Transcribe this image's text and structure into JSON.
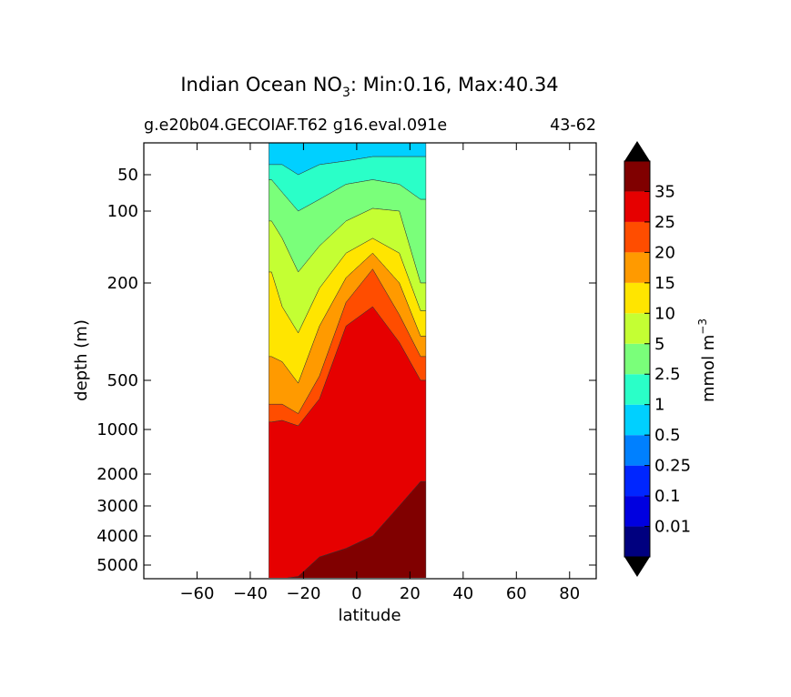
{
  "chart_data": {
    "type": "heatmap",
    "title_prefix": "Indian Ocean NO",
    "title_subscript": "3",
    "title_suffix": ": Min:0.16, Max:40.34",
    "subtitle_left": "g.e20b04.GECOIAF.T62 g16.eval.091e",
    "subtitle_right": "43-62",
    "xlabel": "latitude",
    "ylabel": "depth (m)",
    "xlim": [
      -80,
      90
    ],
    "x_ticks": [
      -60,
      -40,
      -20,
      0,
      20,
      40,
      60,
      80
    ],
    "x_tick_labels": [
      "−60",
      "−40",
      "−20",
      "0",
      "20",
      "40",
      "60",
      "80"
    ],
    "y_ticks": [
      50,
      100,
      200,
      500,
      1000,
      2000,
      3000,
      4000,
      5000
    ],
    "y_tick_labels": [
      "50",
      "100",
      "200",
      "500",
      "1000",
      "2000",
      "3000",
      "4000",
      "5000"
    ],
    "colorbar": {
      "label_prefix": "mmol m",
      "label_superscript": "−3",
      "levels": [
        0,
        0.01,
        0.1,
        0.25,
        0.5,
        1,
        2.5,
        5,
        10,
        15,
        20,
        25,
        35
      ],
      "level_labels": [
        "0.01",
        "0.1",
        "0.25",
        "0.5",
        "1",
        "2.5",
        "5",
        "10",
        "15",
        "20",
        "25",
        "35"
      ],
      "colors": [
        "#00007f",
        "#0000e0",
        "#0026ff",
        "#0080ff",
        "#00d0ff",
        "#2affc8",
        "#7aff7a",
        "#c4ff33",
        "#ffe500",
        "#ff9a00",
        "#ff4d00",
        "#e60000",
        "#800000"
      ],
      "extend_color": "#000000"
    },
    "section": {
      "lat_min": -33,
      "lat_max": 26,
      "profile": [
        {
          "lat": -32,
          "depths": [
            10,
            30,
            55,
            110,
            180,
            400,
            700,
            900,
            5600
          ]
        },
        {
          "lat": -28,
          "depths": [
            10,
            30,
            70,
            130,
            250,
            420,
            700,
            880,
            5600
          ]
        },
        {
          "lat": -22,
          "depths": [
            10,
            50,
            100,
            180,
            320,
            520,
            800,
            950,
            5500
          ]
        },
        {
          "lat": -14,
          "depths": [
            10,
            30,
            80,
            140,
            210,
            300,
            480,
            650,
            4700
          ]
        },
        {
          "lat": -4,
          "depths": [
            10,
            25,
            60,
            110,
            150,
            190,
            240,
            300,
            4400
          ]
        },
        {
          "lat": 6,
          "depths": [
            10,
            20,
            55,
            95,
            130,
            150,
            175,
            250,
            4000
          ]
        },
        {
          "lat": 16,
          "depths": [
            10,
            20,
            60,
            100,
            150,
            200,
            270,
            350,
            3000
          ]
        },
        {
          "lat": 24,
          "depths": [
            10,
            20,
            80,
            200,
            260,
            330,
            400,
            500,
            2200
          ]
        }
      ],
      "band_colors": [
        "#00d0ff",
        "#2affc8",
        "#7aff7a",
        "#c4ff33",
        "#ffe500",
        "#ff9a00",
        "#ff4d00",
        "#e60000",
        "#800000"
      ]
    }
  }
}
